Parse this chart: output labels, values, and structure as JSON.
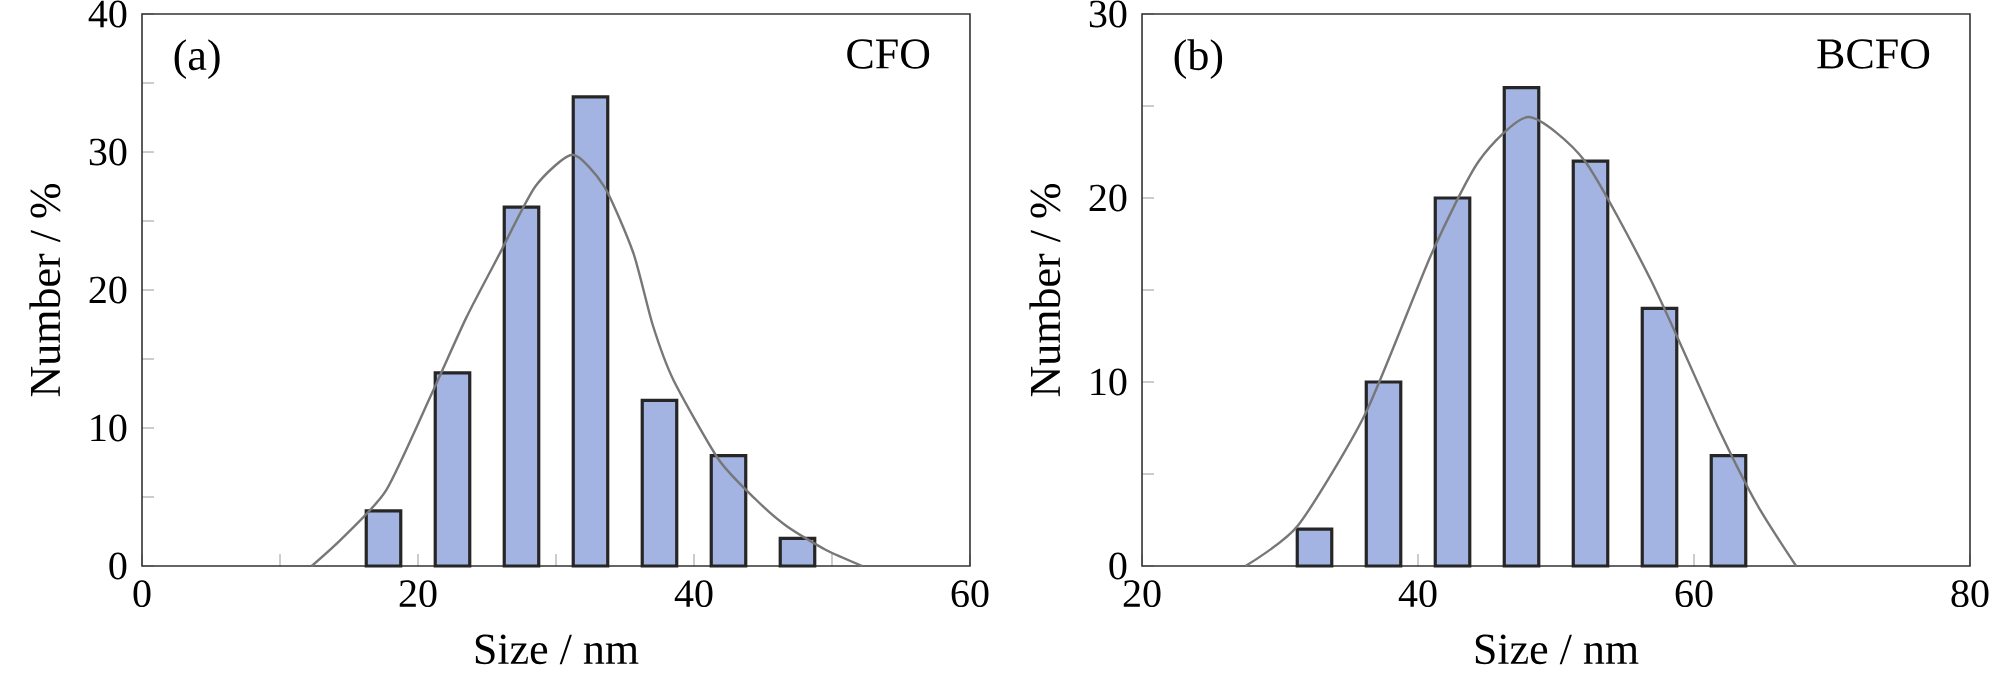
{
  "chart_data": [
    {
      "type": "bar",
      "xlabel": "Size /  nm",
      "ylabel": "Number / %",
      "annotations": [
        "(a)",
        "CFO"
      ],
      "xlim": [
        0,
        60
      ],
      "ylim": [
        0,
        40
      ],
      "xticks": [
        0,
        {
          "value": 10,
          "label": null
        },
        20,
        {
          "value": 30,
          "label": null
        },
        40,
        {
          "value": 50,
          "label": null
        },
        60
      ],
      "yticks": [
        0,
        {
          "value": 5,
          "label": null
        },
        10,
        {
          "value": 15,
          "label": null
        },
        20,
        {
          "value": 25,
          "label": null
        },
        30,
        {
          "value": 35,
          "label": null
        },
        40
      ],
      "series": [
        {
          "color": "#a3b4e2",
          "x": [
            17.5,
            22.5,
            27.5,
            32.5,
            37.5,
            42.5,
            47.5
          ],
          "values": [
            4,
            14,
            26,
            34,
            12,
            8,
            2
          ]
        },
        {
          "type": "line",
          "color": "#777777",
          "x": [
            12.3,
            14.5,
            17.7,
            21,
            23.5,
            25.9,
            28.5,
            31.2,
            33.5,
            35.6,
            37,
            38.5,
            41.8,
            44.5,
            46.7,
            49.5,
            52.2
          ],
          "values": [
            0,
            2,
            5.5,
            12.5,
            18,
            22.6,
            27.5,
            29.8,
            27.5,
            22.7,
            17.5,
            13.5,
            7.7,
            4.8,
            2.9,
            1.2,
            0
          ]
        }
      ]
    },
    {
      "type": "bar",
      "xlabel": "Size / nm",
      "ylabel": "Number / %",
      "annotations": [
        "(b)",
        "BCFO"
      ],
      "xlim": [
        20,
        80
      ],
      "ylim": [
        0,
        30
      ],
      "xticks": [
        20,
        40,
        60,
        80
      ],
      "yticks": [
        0,
        {
          "value": 5,
          "label": null
        },
        10,
        {
          "value": 15,
          "label": null
        },
        20,
        {
          "value": 25,
          "label": null
        },
        30
      ],
      "series": [
        {
          "color": "#a3b4e2",
          "x": [
            32.5,
            37.5,
            42.5,
            47.5,
            52.5,
            57.5,
            62.5
          ],
          "values": [
            2,
            10,
            20,
            26,
            22,
            14,
            6
          ]
        },
        {
          "type": "line",
          "color": "#777777",
          "x": [
            27.5,
            31.3,
            36.2,
            41,
            44.4,
            48,
            52.1,
            56.9,
            61.7,
            64.6,
            67.4
          ],
          "values": [
            0,
            2.2,
            8.3,
            17,
            22,
            24.4,
            22,
            15.5,
            7.6,
            3.3,
            0
          ]
        }
      ]
    }
  ]
}
